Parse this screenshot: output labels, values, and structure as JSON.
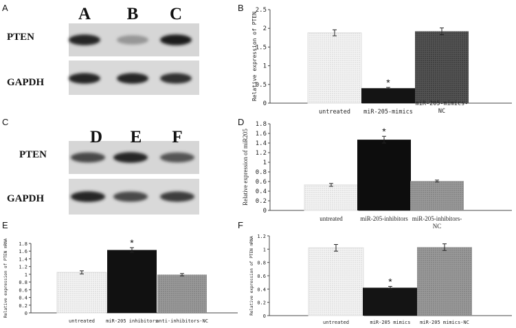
{
  "panel_letters": [
    "A",
    "B",
    "C",
    "D",
    "E",
    "F"
  ],
  "blots": [
    {
      "letter": "A",
      "lanes": [
        "A",
        "B",
        "C"
      ],
      "rows": [
        "PTEN",
        "GAPDH"
      ],
      "band_intensity": [
        [
          0.85,
          0.35,
          0.9
        ],
        [
          0.85,
          0.85,
          0.8
        ]
      ]
    },
    {
      "letter": "C",
      "lanes": [
        "D",
        "E",
        "F"
      ],
      "rows": [
        "PTEN",
        "GAPDH"
      ],
      "band_intensity": [
        [
          0.7,
          0.85,
          0.65
        ],
        [
          0.85,
          0.7,
          0.75
        ]
      ]
    }
  ],
  "chart_data": [
    {
      "panel": "B",
      "type": "bar",
      "categories": [
        "untreated",
        "miR-205-mimics",
        "miR-205-mimics-NC"
      ],
      "values": [
        1.88,
        0.4,
        1.92
      ],
      "errors": [
        0.08,
        0.02,
        0.09
      ],
      "significant": [
        false,
        true,
        false
      ],
      "ylabel": "Relative expression of PTEN",
      "ylim": [
        0,
        2.5
      ],
      "yticks": [
        "0",
        "0.5",
        "1",
        "1.5",
        "2",
        "2.5"
      ],
      "bar_colors": [
        "#e8e8e8",
        "#141414",
        "#4a4a4a"
      ]
    },
    {
      "panel": "D",
      "type": "bar",
      "categories": [
        "untreated",
        "miR-205-inhibitors",
        "miR-205-inhibitors-NC"
      ],
      "values": [
        0.53,
        1.47,
        0.61
      ],
      "errors": [
        0.03,
        0.07,
        0.02
      ],
      "significant": [
        false,
        true,
        false
      ],
      "ylabel": "Relative expression of miR205",
      "ylim": [
        0,
        1.8
      ],
      "yticks": [
        "0",
        "0.2",
        "0.4",
        "0.6",
        "0.8",
        "1",
        "1.2",
        "1.4",
        "1.6",
        "1.8"
      ],
      "bar_colors": [
        "#ececec",
        "#0d0d0d",
        "#8c8c8c"
      ]
    },
    {
      "panel": "E",
      "type": "bar",
      "categories": [
        "untreated",
        "miR-205 inhibitors",
        "anti-inhibitors-NC"
      ],
      "values": [
        1.05,
        1.63,
        0.99
      ],
      "errors": [
        0.04,
        0.06,
        0.03
      ],
      "significant": [
        false,
        true,
        false
      ],
      "ylabel": "Relative expression of PTEN mRNA",
      "ylim": [
        0,
        1.8
      ],
      "yticks": [
        "0",
        "0.2",
        "0.4",
        "0.6",
        "0.8",
        "1",
        "1.2",
        "1.4",
        "1.6",
        "1.8"
      ],
      "bar_colors": [
        "#ececec",
        "#111111",
        "#8a8a8a"
      ]
    },
    {
      "panel": "F",
      "type": "bar",
      "categories": [
        "untreated",
        "miR-205 mimics",
        "miR-205 mimics-NC"
      ],
      "values": [
        1.02,
        0.42,
        1.03
      ],
      "errors": [
        0.05,
        0.02,
        0.05
      ],
      "significant": [
        false,
        true,
        false
      ],
      "ylabel": "Relative expression of PTEN mRNA",
      "ylim": [
        0,
        1.2
      ],
      "yticks": [
        "0",
        "0.2",
        "0.4",
        "0.6",
        "0.8",
        "1",
        "1.2"
      ],
      "bar_colors": [
        "#ececec",
        "#141414",
        "#8a8a8a"
      ]
    }
  ]
}
